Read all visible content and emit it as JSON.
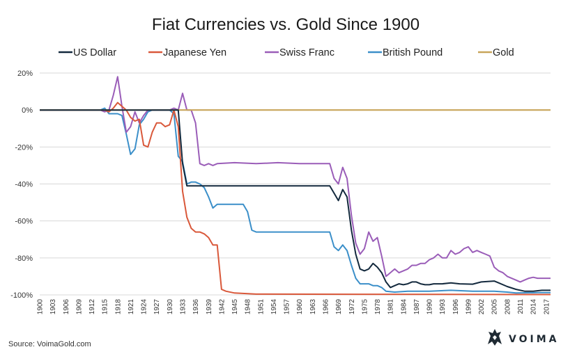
{
  "chart_data": {
    "type": "line",
    "title": "Fiat Currencies vs. Gold Since 1900",
    "xlabel": "",
    "ylabel": "",
    "ylim": [
      -100,
      20
    ],
    "xlim": [
      1900,
      2018
    ],
    "yticks": [
      20,
      0,
      -20,
      -40,
      -60,
      -80,
      -100
    ],
    "ytick_labels": [
      "20%",
      "0%",
      "-20%",
      "-40%",
      "-60%",
      "-80%",
      "-100%"
    ],
    "xticks": [
      1900,
      1903,
      1906,
      1909,
      1912,
      1915,
      1918,
      1921,
      1924,
      1927,
      1930,
      1933,
      1936,
      1939,
      1942,
      1945,
      1948,
      1951,
      1954,
      1957,
      1960,
      1963,
      1966,
      1969,
      1972,
      1975,
      1978,
      1981,
      1984,
      1987,
      1990,
      1993,
      1996,
      1999,
      2002,
      2005,
      2008,
      2011,
      2014,
      2017
    ],
    "grid": true,
    "legend_position": "top",
    "source": "Source: VoimaGold.com",
    "brand": "VOIMA",
    "series": [
      {
        "name": "US Dollar",
        "color": "#13293d",
        "points": [
          [
            1900,
            0
          ],
          [
            1932,
            0
          ],
          [
            1933,
            -29
          ],
          [
            1934,
            -41
          ],
          [
            1935,
            -41
          ],
          [
            1967,
            -41
          ],
          [
            1968,
            -45
          ],
          [
            1969,
            -49
          ],
          [
            1970,
            -43
          ],
          [
            1971,
            -47
          ],
          [
            1972,
            -65
          ],
          [
            1973,
            -78
          ],
          [
            1974,
            -86
          ],
          [
            1975,
            -87
          ],
          [
            1976,
            -86
          ],
          [
            1977,
            -83
          ],
          [
            1978,
            -85
          ],
          [
            1979,
            -88
          ],
          [
            1980,
            -93
          ],
          [
            1981,
            -96
          ],
          [
            1982,
            -95
          ],
          [
            1983,
            -94
          ],
          [
            1984,
            -94.5
          ],
          [
            1985,
            -94
          ],
          [
            1986,
            -93
          ],
          [
            1987,
            -93
          ],
          [
            1988,
            -94
          ],
          [
            1989,
            -94.5
          ],
          [
            1990,
            -94.5
          ],
          [
            1991,
            -94
          ],
          [
            1993,
            -94
          ],
          [
            1995,
            -93.5
          ],
          [
            1997,
            -94
          ],
          [
            2000,
            -94.2
          ],
          [
            2001,
            -93.6
          ],
          [
            2002,
            -93
          ],
          [
            2005,
            -92.5
          ],
          [
            2006,
            -93.5
          ],
          [
            2008,
            -95.5
          ],
          [
            2010,
            -97
          ],
          [
            2012,
            -98
          ],
          [
            2014,
            -98
          ],
          [
            2016,
            -97.5
          ],
          [
            2018,
            -97.5
          ]
        ]
      },
      {
        "name": "Japanese Yen",
        "color": "#d9583a",
        "points": [
          [
            1900,
            0
          ],
          [
            1915,
            0
          ],
          [
            1916,
            -1
          ],
          [
            1917,
            1
          ],
          [
            1918,
            4
          ],
          [
            1919,
            2
          ],
          [
            1920,
            0
          ],
          [
            1921,
            -4
          ],
          [
            1922,
            -6
          ],
          [
            1923,
            -5
          ],
          [
            1924,
            -19
          ],
          [
            1925,
            -20
          ],
          [
            1926,
            -12
          ],
          [
            1927,
            -7
          ],
          [
            1928,
            -7
          ],
          [
            1929,
            -9
          ],
          [
            1930,
            -8
          ],
          [
            1931,
            0
          ],
          [
            1932,
            -9
          ],
          [
            1933,
            -44
          ],
          [
            1934,
            -58
          ],
          [
            1935,
            -64
          ],
          [
            1936,
            -66
          ],
          [
            1937,
            -66
          ],
          [
            1938,
            -67
          ],
          [
            1939,
            -69
          ],
          [
            1940,
            -73
          ],
          [
            1941,
            -73
          ],
          [
            1942,
            -97
          ],
          [
            1943,
            -98
          ],
          [
            1945,
            -99
          ],
          [
            1950,
            -99.6
          ],
          [
            2018,
            -99.8
          ]
        ]
      },
      {
        "name": "Swiss Franc",
        "color": "#9a5db8",
        "points": [
          [
            1900,
            0
          ],
          [
            1914,
            0
          ],
          [
            1915,
            -1
          ],
          [
            1916,
            0
          ],
          [
            1917,
            8
          ],
          [
            1918,
            18
          ],
          [
            1919,
            2
          ],
          [
            1920,
            -12
          ],
          [
            1921,
            -9
          ],
          [
            1922,
            -1
          ],
          [
            1923,
            -7
          ],
          [
            1924,
            -3
          ],
          [
            1925,
            0
          ],
          [
            1927,
            0
          ],
          [
            1930,
            0
          ],
          [
            1931,
            1
          ],
          [
            1932,
            0
          ],
          [
            1933,
            9
          ],
          [
            1934,
            0
          ],
          [
            1935,
            0
          ],
          [
            1936,
            -7
          ],
          [
            1937,
            -29
          ],
          [
            1938,
            -30
          ],
          [
            1939,
            -29
          ],
          [
            1940,
            -30
          ],
          [
            1941,
            -29
          ],
          [
            1945,
            -28.5
          ],
          [
            1950,
            -29
          ],
          [
            1955,
            -28.5
          ],
          [
            1960,
            -29
          ],
          [
            1965,
            -29
          ],
          [
            1967,
            -29
          ],
          [
            1968,
            -37
          ],
          [
            1969,
            -40
          ],
          [
            1970,
            -31
          ],
          [
            1971,
            -37
          ],
          [
            1972,
            -57
          ],
          [
            1973,
            -72
          ],
          [
            1974,
            -78
          ],
          [
            1975,
            -75
          ],
          [
            1976,
            -66
          ],
          [
            1977,
            -71
          ],
          [
            1978,
            -69
          ],
          [
            1979,
            -79
          ],
          [
            1980,
            -90
          ],
          [
            1981,
            -88
          ],
          [
            1982,
            -86
          ],
          [
            1983,
            -88
          ],
          [
            1984,
            -87
          ],
          [
            1985,
            -86
          ],
          [
            1986,
            -84
          ],
          [
            1987,
            -84
          ],
          [
            1988,
            -83
          ],
          [
            1989,
            -83
          ],
          [
            1990,
            -81
          ],
          [
            1991,
            -80
          ],
          [
            1992,
            -78
          ],
          [
            1993,
            -80
          ],
          [
            1994,
            -80
          ],
          [
            1995,
            -76
          ],
          [
            1996,
            -78
          ],
          [
            1997,
            -77
          ],
          [
            1998,
            -75
          ],
          [
            1999,
            -74
          ],
          [
            2000,
            -77
          ],
          [
            2001,
            -76
          ],
          [
            2002,
            -77
          ],
          [
            2003,
            -78
          ],
          [
            2004,
            -79
          ],
          [
            2005,
            -85
          ],
          [
            2006,
            -87
          ],
          [
            2007,
            -88
          ],
          [
            2008,
            -90
          ],
          [
            2009,
            -91
          ],
          [
            2010,
            -92
          ],
          [
            2011,
            -93
          ],
          [
            2012,
            -92
          ],
          [
            2013,
            -91
          ],
          [
            2014,
            -90.5
          ],
          [
            2015,
            -91
          ],
          [
            2016,
            -91
          ],
          [
            2018,
            -91
          ]
        ]
      },
      {
        "name": "British Pound",
        "color": "#3b8fc9",
        "points": [
          [
            1900,
            0
          ],
          [
            1914,
            0
          ],
          [
            1915,
            1
          ],
          [
            1916,
            -2
          ],
          [
            1917,
            -2
          ],
          [
            1918,
            -2
          ],
          [
            1919,
            -3
          ],
          [
            1920,
            -13
          ],
          [
            1921,
            -24
          ],
          [
            1922,
            -21
          ],
          [
            1923,
            -8
          ],
          [
            1924,
            -5
          ],
          [
            1925,
            -1
          ],
          [
            1926,
            0
          ],
          [
            1930,
            0
          ],
          [
            1931,
            -2
          ],
          [
            1932,
            -25
          ],
          [
            1933,
            -28
          ],
          [
            1934,
            -40
          ],
          [
            1935,
            -39
          ],
          [
            1936,
            -39
          ],
          [
            1937,
            -40
          ],
          [
            1938,
            -42
          ],
          [
            1939,
            -47
          ],
          [
            1940,
            -53
          ],
          [
            1941,
            -51
          ],
          [
            1945,
            -51
          ],
          [
            1947,
            -51
          ],
          [
            1948,
            -55
          ],
          [
            1949,
            -65
          ],
          [
            1950,
            -66
          ],
          [
            1955,
            -66
          ],
          [
            1960,
            -66
          ],
          [
            1965,
            -66
          ],
          [
            1967,
            -66
          ],
          [
            1968,
            -74
          ],
          [
            1969,
            -76
          ],
          [
            1970,
            -73
          ],
          [
            1971,
            -76
          ],
          [
            1972,
            -84
          ],
          [
            1973,
            -91
          ],
          [
            1974,
            -94
          ],
          [
            1975,
            -94
          ],
          [
            1976,
            -94
          ],
          [
            1977,
            -95
          ],
          [
            1978,
            -95
          ],
          [
            1979,
            -96
          ],
          [
            1980,
            -98
          ],
          [
            1982,
            -98.5
          ],
          [
            1985,
            -98
          ],
          [
            1990,
            -98
          ],
          [
            1995,
            -97.5
          ],
          [
            2000,
            -98
          ],
          [
            2005,
            -98
          ],
          [
            2008,
            -98.5
          ],
          [
            2010,
            -99
          ],
          [
            2015,
            -98.8
          ],
          [
            2018,
            -98.8
          ]
        ]
      },
      {
        "name": "Gold",
        "color": "#c8a55a",
        "points": [
          [
            1900,
            0
          ],
          [
            2018,
            0
          ]
        ]
      }
    ]
  }
}
